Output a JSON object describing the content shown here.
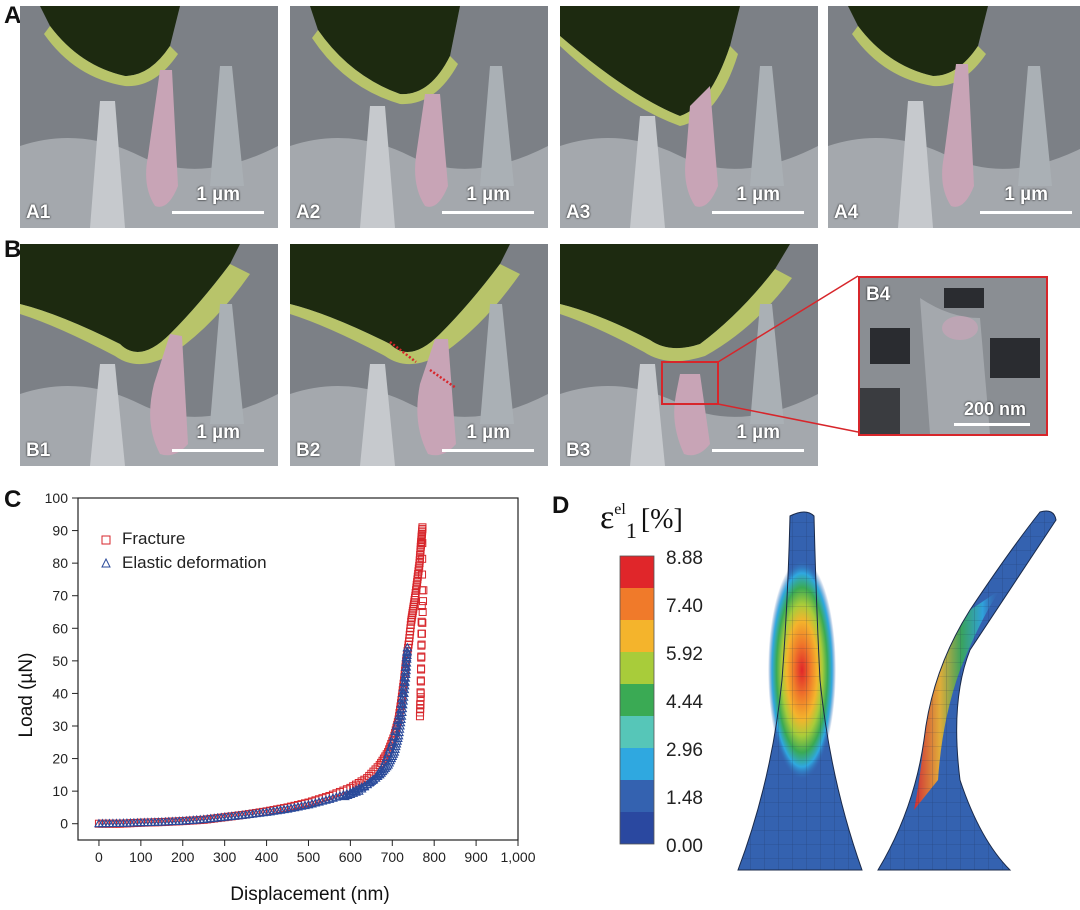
{
  "panels": {
    "A": "A",
    "B": "B",
    "C": "C",
    "D": "D"
  },
  "row_a": [
    {
      "label": "A1",
      "scale": "1 µm"
    },
    {
      "label": "A2",
      "scale": "1 µm"
    },
    {
      "label": "A3",
      "scale": "1 µm"
    },
    {
      "label": "A4",
      "scale": "1 µm"
    }
  ],
  "row_b": [
    {
      "label": "B1",
      "scale": "1 µm"
    },
    {
      "label": "B2",
      "scale": "1 µm"
    },
    {
      "label": "B3",
      "scale": "1 µm"
    }
  ],
  "inset_b4": {
    "label": "B4",
    "scale": "200 nm"
  },
  "chart_data": {
    "type": "scatter",
    "xlabel": "Displacement (nm)",
    "ylabel": "Load (µN)",
    "xlim": [
      -50,
      1000
    ],
    "ylim": [
      -5,
      100
    ],
    "xticks": [
      "0",
      "100",
      "200",
      "300",
      "400",
      "500",
      "600",
      "700",
      "800",
      "900",
      "1,000"
    ],
    "yticks": [
      "0",
      "10",
      "20",
      "30",
      "40",
      "50",
      "60",
      "70",
      "80",
      "90",
      "100"
    ],
    "legend": "top-left",
    "series": [
      {
        "name": "Fracture",
        "marker": "square",
        "color": "#d7262b",
        "points": [
          [
            0,
            0
          ],
          [
            50,
            0
          ],
          [
            100,
            0.3
          ],
          [
            150,
            0.5
          ],
          [
            200,
            0.8
          ],
          [
            250,
            1.2
          ],
          [
            300,
            2
          ],
          [
            350,
            2.8
          ],
          [
            400,
            3.8
          ],
          [
            450,
            5
          ],
          [
            500,
            6.5
          ],
          [
            550,
            8.5
          ],
          [
            600,
            11
          ],
          [
            640,
            14
          ],
          [
            670,
            18
          ],
          [
            690,
            22
          ],
          [
            705,
            27
          ],
          [
            715,
            32
          ],
          [
            722,
            38
          ],
          [
            728,
            44
          ],
          [
            733,
            50
          ],
          [
            740,
            56
          ],
          [
            745,
            62
          ],
          [
            750,
            66
          ],
          [
            755,
            70
          ],
          [
            760,
            75
          ],
          [
            765,
            80
          ],
          [
            768,
            85
          ],
          [
            770,
            88
          ],
          [
            772,
            91
          ],
          [
            770,
            62
          ],
          [
            768,
            40
          ],
          [
            766,
            33
          ],
          [
            770,
            55
          ],
          [
            775,
            75
          ]
        ]
      },
      {
        "name": "Elastic deformation",
        "marker": "triangle",
        "color": "#2a4a9a",
        "points": [
          [
            0,
            0
          ],
          [
            50,
            0.1
          ],
          [
            100,
            0.3
          ],
          [
            150,
            0.5
          ],
          [
            200,
            0.8
          ],
          [
            250,
            1.3
          ],
          [
            300,
            2
          ],
          [
            350,
            2.7
          ],
          [
            400,
            3.5
          ],
          [
            450,
            4.5
          ],
          [
            500,
            5.8
          ],
          [
            550,
            7.5
          ],
          [
            600,
            9.5
          ],
          [
            640,
            12
          ],
          [
            670,
            15
          ],
          [
            690,
            18
          ],
          [
            705,
            22
          ],
          [
            715,
            27
          ],
          [
            722,
            33
          ],
          [
            728,
            40
          ],
          [
            733,
            47
          ],
          [
            736,
            54
          ],
          [
            730,
            45
          ],
          [
            720,
            35
          ],
          [
            700,
            25
          ],
          [
            680,
            18
          ],
          [
            660,
            14
          ],
          [
            620,
            10
          ],
          [
            580,
            8
          ]
        ]
      }
    ]
  },
  "colorbar": {
    "title_sym": "ε",
    "title_sup": "el",
    "title_sub": "1",
    "title_unit": "[%]",
    "levels": [
      "8.88",
      "7.40",
      "5.92",
      "4.44",
      "2.96",
      "1.48",
      "0.00"
    ],
    "colors": [
      "#e0262a",
      "#f07a2a",
      "#f4b42c",
      "#a8cc3a",
      "#3aaa54",
      "#56c6b8",
      "#2fa8e0",
      "#3462b0",
      "#2a48a0"
    ]
  }
}
